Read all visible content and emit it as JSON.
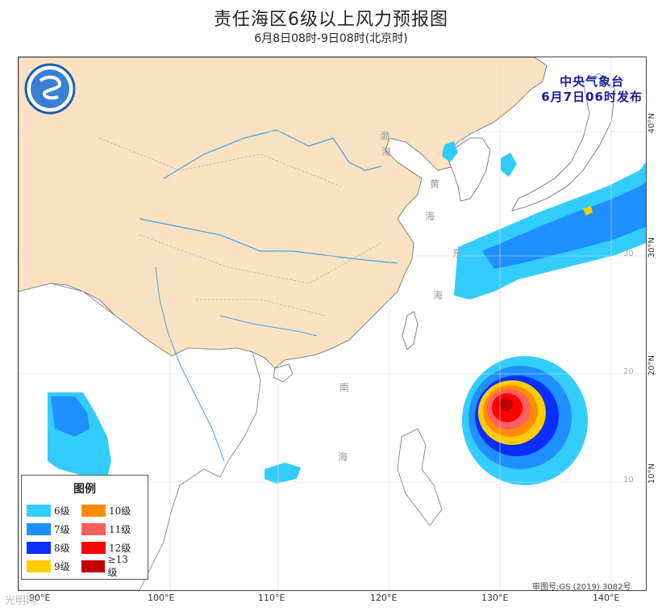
{
  "title": "责任海区6级以上风力预报图",
  "subtitle": "6月8日08时-9日08时(北京时)",
  "issuer": {
    "line1": "中央气象台",
    "line2": "6月7日06时发布"
  },
  "longitude_labels": [
    "90°E",
    "100°E",
    "110°E",
    "120°E",
    "130°E",
    "140°E"
  ],
  "latitude_labels": [
    "40°N",
    "30°N",
    "20°N",
    "10°N"
  ],
  "inmap_lat_labels": [
    "30",
    "20",
    "10"
  ],
  "sea_labels": {
    "bohai": [
      "渤",
      "海"
    ],
    "huanghai": [
      "黄",
      "海"
    ],
    "donghai": [
      "东",
      "海"
    ],
    "nanhai": [
      "南",
      "海"
    ]
  },
  "legend": {
    "title": "图例",
    "items": [
      {
        "label": "6级",
        "color": "#33ccff"
      },
      {
        "label": "10级",
        "color": "#ff8c00"
      },
      {
        "label": "7级",
        "color": "#1e90ff"
      },
      {
        "label": "11级",
        "color": "#ff5f5f"
      },
      {
        "label": "8级",
        "color": "#0a2eff"
      },
      {
        "label": "12级",
        "color": "#ff0000"
      },
      {
        "label": "9级",
        "color": "#ffcc00"
      },
      {
        "label": "≥13级",
        "color": "#c00000"
      }
    ]
  },
  "approval_number": "审图号:GS (2019) 3082号",
  "watermark": "光明网",
  "colors": {
    "land": "#fae3c2",
    "sea": "#ffffff",
    "river": "#4aa0d8",
    "border": "#555555"
  }
}
